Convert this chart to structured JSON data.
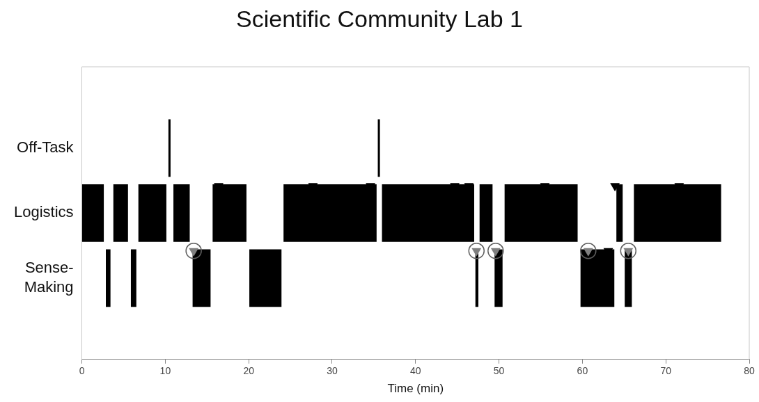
{
  "chart_data": {
    "type": "bar",
    "orientation": "horizontal",
    "title": "Scientific Community Lab 1",
    "xlabel": "Time (min)",
    "categories": [
      "Off-Task",
      "Logistics",
      "Sense-Making"
    ],
    "xlim": [
      0,
      80
    ],
    "xticks": [
      0,
      10,
      20,
      30,
      40,
      50,
      60,
      70,
      80
    ],
    "grid": false,
    "legend": false,
    "series": [
      {
        "color": "#000000",
        "base": [
          10.4,
          0,
          2.9
        ],
        "values": [
          0.2,
          2.6,
          0.5
        ]
      },
      {
        "color": "#000000",
        "base": [
          35.5,
          3.8,
          5.9
        ],
        "values": [
          0.2,
          1.7,
          0.6
        ]
      },
      {
        "color": "#000000",
        "base": [
          null,
          6.8,
          13.3
        ],
        "values": [
          null,
          3.3,
          2.1
        ]
      },
      {
        "color": "#000000",
        "base": [
          null,
          11.0,
          20.1
        ],
        "values": [
          null,
          1.9,
          3.8
        ]
      },
      {
        "color": "#000000",
        "base": [
          null,
          15.7,
          47.2
        ],
        "values": [
          null,
          4.0,
          0.3
        ]
      },
      {
        "color": "#000000",
        "base": [
          null,
          24.2,
          49.5
        ],
        "values": [
          null,
          11.1,
          0.9
        ]
      },
      {
        "color": "#000000",
        "base": [
          null,
          36.0,
          59.8
        ],
        "values": [
          null,
          11.0,
          4.0
        ]
      },
      {
        "color": "#000000",
        "base": [
          null,
          47.7,
          65.1
        ],
        "values": [
          null,
          1.5,
          0.8
        ]
      },
      {
        "color": "#000000",
        "base": [
          null,
          50.7,
          null
        ],
        "values": [
          null,
          8.7,
          null
        ]
      },
      {
        "color": "#000000",
        "base": [
          null,
          64.1,
          null
        ],
        "values": [
          null,
          0.7,
          null
        ]
      },
      {
        "color": "#000000",
        "base": [
          null,
          66.2,
          null
        ],
        "values": [
          null,
          10.4,
          null
        ]
      },
      {
        "type": "scatter",
        "marker": "triangle",
        "color": "#000000",
        "x": [
          "Logistics",
          "Logistics",
          "Logistics",
          "Logistics",
          "Logistics",
          "Logistics",
          "Logistics",
          "Logistics",
          "Sense-Making"
        ],
        "values": [
          16.4,
          27.7,
          34.6,
          44.7,
          46.4,
          55.5,
          63.9,
          71.6,
          63.1
        ]
      },
      {
        "type": "scatter",
        "marker": "triangle",
        "color": "#808080",
        "x": [
          "Sense-Making",
          "Sense-Making",
          "Sense-Making",
          "Sense-Making",
          "Sense-Making"
        ],
        "values": [
          13.4,
          47.3,
          49.6,
          60.7,
          65.5
        ]
      },
      {
        "type": "scatter",
        "marker": "circle",
        "color": "#606060",
        "x": [
          "Sense-Making",
          "Sense-Making",
          "Sense-Making",
          "Sense-Making",
          "Sense-Making"
        ],
        "values": [
          13.4,
          47.3,
          49.6,
          60.7,
          65.5
        ]
      }
    ]
  }
}
